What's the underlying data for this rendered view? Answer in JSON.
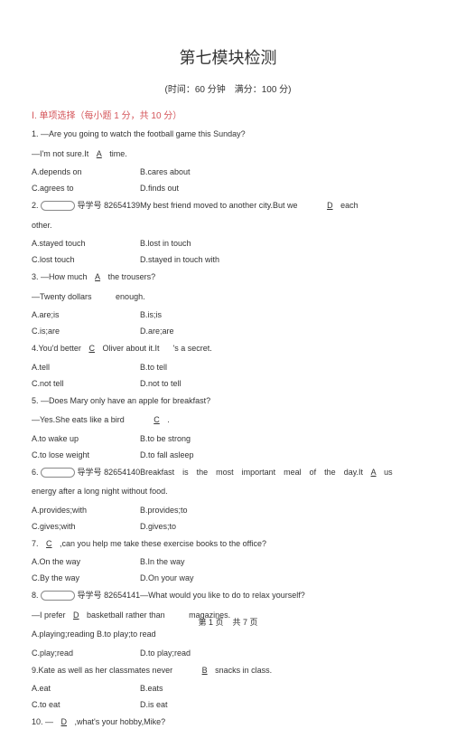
{
  "title": "第七模块检测",
  "subtitle": "(时间：60 分钟　满分：100 分)",
  "section1": "Ⅰ. 单项选择（每小题 1 分，共 10 分）",
  "q1": {
    "l1": "1. —Are you going to watch the football game this Sunday?",
    "l2a": "—I'm not sure.It",
    "ans": "A",
    "l2b": "time.",
    "opts": {
      "a": "A.depends on",
      "b": "B.cares about",
      "c": "C.agrees to",
      "d": "D.finds out"
    }
  },
  "q2": {
    "pfx": "2.",
    "tag": "导学号",
    "code": "82654139My best friend moved to another city.But we",
    "ans": "D",
    "tail": "each",
    "l2": "other.",
    "opts": {
      "a": "A.stayed touch",
      "b": "B.lost in touch",
      "c": "C.lost touch",
      "d": "D.stayed in touch with"
    }
  },
  "q3": {
    "l1a": "3. —How much",
    "ans": "A",
    "l1b": "the trousers?",
    "l2a": "—Twenty dollars",
    "l2b": "enough.",
    "opts": {
      "a": "A.are;is",
      "b": "B.is;is",
      "c": "C.is;are",
      "d": "D.are;are"
    }
  },
  "q4": {
    "l1a": "4.You'd better",
    "ans": "C",
    "l1b": "Oliver about it.It",
    "l1c": "'s a secret.",
    "opts": {
      "a": "A.tell",
      "b": "B.to tell",
      "c": "C.not tell",
      "d": "D.not to tell"
    }
  },
  "q5": {
    "l1": "5. —Does Mary only have an apple for breakfast?",
    "l2a": "—Yes.She eats like a bird",
    "ans": "C",
    "l2b": ".",
    "opts": {
      "a": "A.to wake up",
      "b": "B.to be strong",
      "c": "C.to lose weight",
      "d": "D.to fall asleep"
    }
  },
  "q6": {
    "pfx": "6.",
    "tag": "导学号",
    "code": "82654140Breakfast　is　the　most　important　meal　of　the　day.It",
    "ans": "A",
    "tail": "us",
    "l2": "energy after a long night without food.",
    "opts": {
      "a": "A.provides;with",
      "b": "B.provides;to",
      "c": "C.gives;with",
      "d": "D.gives;to"
    }
  },
  "q7": {
    "l1a": "7.",
    "ans": "C",
    "l1b": ",can you help me take these exercise books to the office?",
    "opts": {
      "a": "A.On the way",
      "b": "B.In the way",
      "c": "C.By the way",
      "d": "D.On your way"
    }
  },
  "q8": {
    "pfx": "8.",
    "tag": "导学号",
    "code": "82654141—What would you like to do to relax yourself?",
    "l2a": "—I prefer",
    "ans": "D",
    "l2b": "basketball rather than",
    "l2c": "magazines.",
    "opts": {
      "a": "A.playing;reading B.to play;to read",
      "c": "C.play;read",
      "d": "D.to play;read"
    }
  },
  "q9": {
    "l1a": "9.Kate as well as her classmates never",
    "ans": "B",
    "l1b": "snacks in class.",
    "opts": {
      "a": "A.eat",
      "b": "B.eats",
      "c": "C.to eat",
      "d": "D.is eat"
    }
  },
  "q10": {
    "l1a": "10. —",
    "ans": "D",
    "l1b": ",what's your hobby,Mike?"
  },
  "footer": {
    "a": "第 1 页",
    "b": "共 7 页"
  }
}
